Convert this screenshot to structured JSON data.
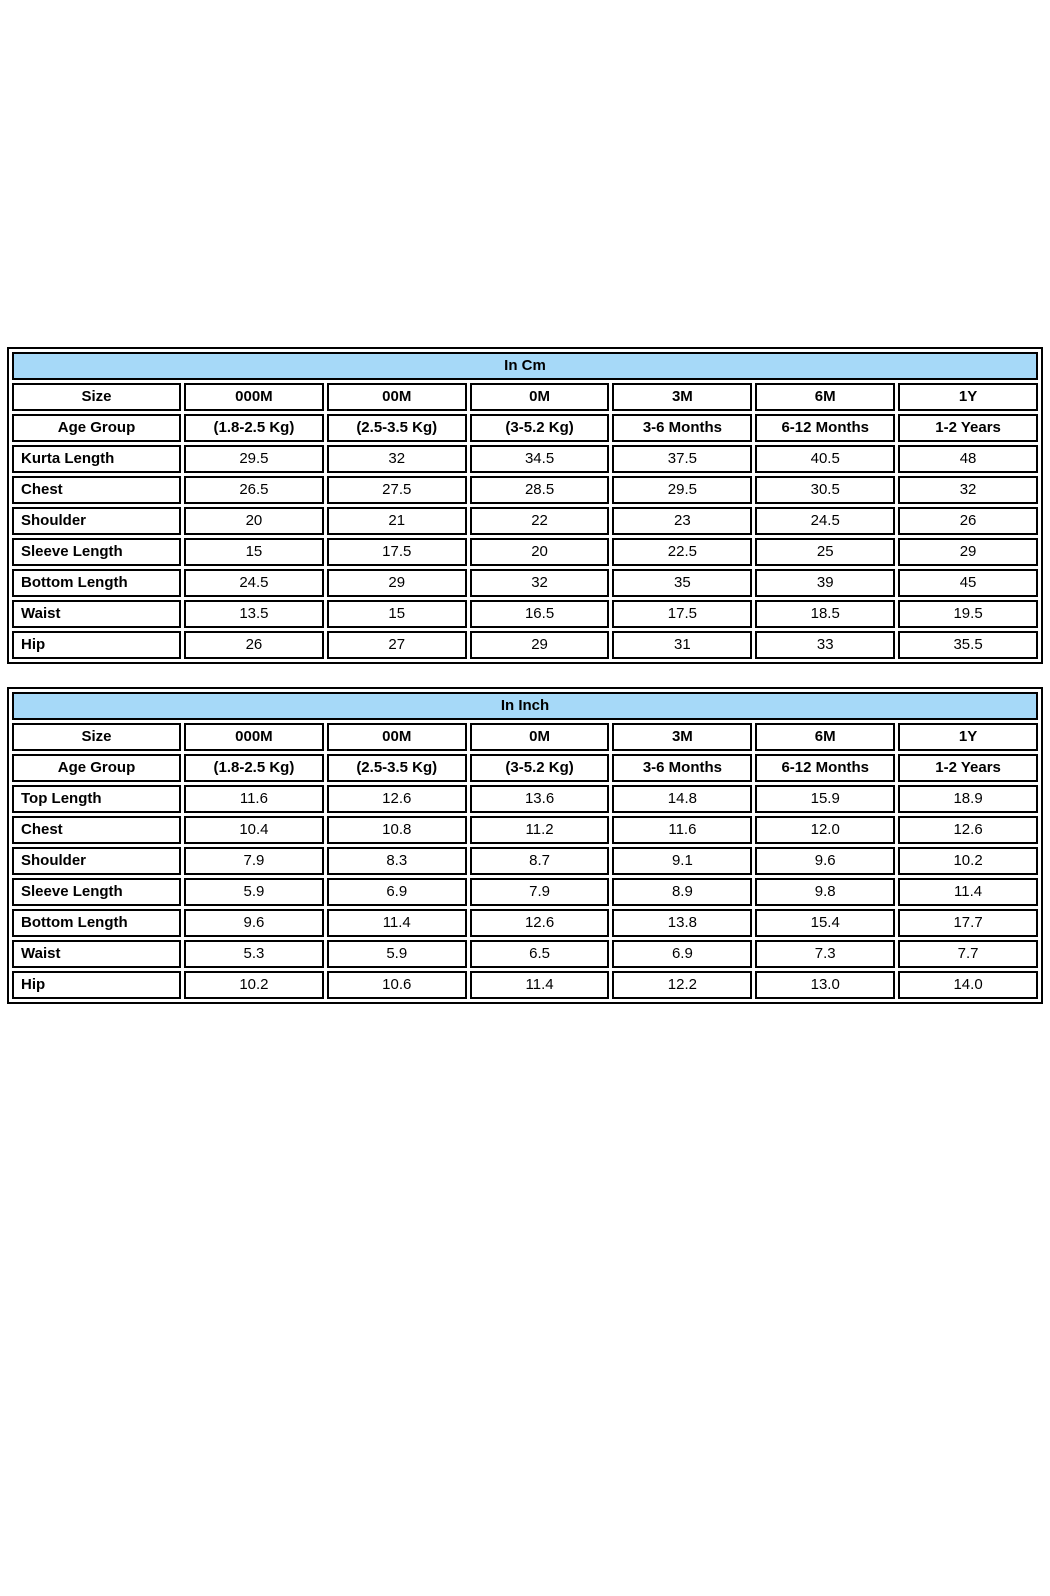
{
  "page": {
    "background": "#ffffff"
  },
  "colors": {
    "title_bg": "#a6d9f8",
    "border": "#000000",
    "cell_bg": "#ffffff",
    "text": "#000000"
  },
  "tables": [
    {
      "id": "cm",
      "title": "In Cm",
      "rows": [
        {
          "label": "Size",
          "header": true,
          "values": [
            "000M",
            "00M",
            "0M",
            "3M",
            "6M",
            "1Y"
          ]
        },
        {
          "label": "Age Group",
          "header": true,
          "values": [
            "(1.8-2.5 Kg)",
            "(2.5-3.5 Kg)",
            "(3-5.2 Kg)",
            "3-6 Months",
            "6-12 Months",
            "1-2 Years"
          ]
        },
        {
          "label": "Kurta Length",
          "values": [
            "29.5",
            "32",
            "34.5",
            "37.5",
            "40.5",
            "48"
          ]
        },
        {
          "label": "Chest",
          "values": [
            "26.5",
            "27.5",
            "28.5",
            "29.5",
            "30.5",
            "32"
          ]
        },
        {
          "label": "Shoulder",
          "values": [
            "20",
            "21",
            "22",
            "23",
            "24.5",
            "26"
          ]
        },
        {
          "label": "Sleeve Length",
          "values": [
            "15",
            "17.5",
            "20",
            "22.5",
            "25",
            "29"
          ]
        },
        {
          "label": "Bottom Length",
          "values": [
            "24.5",
            "29",
            "32",
            "35",
            "39",
            "45"
          ]
        },
        {
          "label": "Waist",
          "values": [
            "13.5",
            "15",
            "16.5",
            "17.5",
            "18.5",
            "19.5"
          ]
        },
        {
          "label": "Hip",
          "values": [
            "26",
            "27",
            "29",
            "31",
            "33",
            "35.5"
          ]
        }
      ]
    },
    {
      "id": "inch",
      "title": "In Inch",
      "rows": [
        {
          "label": "Size",
          "header": true,
          "values": [
            "000M",
            "00M",
            "0M",
            "3M",
            "6M",
            "1Y"
          ]
        },
        {
          "label": "Age Group",
          "header": true,
          "values": [
            "(1.8-2.5 Kg)",
            "(2.5-3.5 Kg)",
            "(3-5.2 Kg)",
            "3-6 Months",
            "6-12 Months",
            "1-2 Years"
          ]
        },
        {
          "label": "Top Length",
          "values": [
            "11.6",
            "12.6",
            "13.6",
            "14.8",
            "15.9",
            "18.9"
          ]
        },
        {
          "label": "Chest",
          "values": [
            "10.4",
            "10.8",
            "11.2",
            "11.6",
            "12.0",
            "12.6"
          ]
        },
        {
          "label": "Shoulder",
          "values": [
            "7.9",
            "8.3",
            "8.7",
            "9.1",
            "9.6",
            "10.2"
          ]
        },
        {
          "label": "Sleeve Length",
          "values": [
            "5.9",
            "6.9",
            "7.9",
            "8.9",
            "9.8",
            "11.4"
          ]
        },
        {
          "label": "Bottom Length",
          "values": [
            "9.6",
            "11.4",
            "12.6",
            "13.8",
            "15.4",
            "17.7"
          ]
        },
        {
          "label": "Waist",
          "values": [
            "5.3",
            "5.9",
            "6.5",
            "6.9",
            "7.3",
            "7.7"
          ]
        },
        {
          "label": "Hip",
          "values": [
            "10.2",
            "10.6",
            "11.4",
            "12.2",
            "13.0",
            "14.0"
          ]
        }
      ]
    }
  ]
}
